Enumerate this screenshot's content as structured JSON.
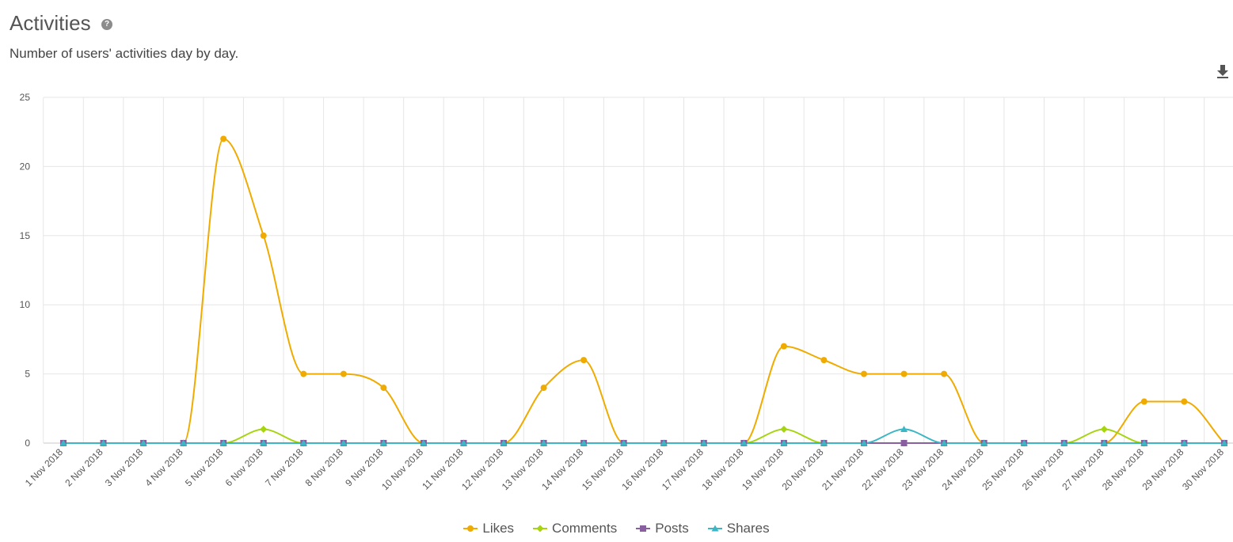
{
  "header": {
    "title": "Activities",
    "help_glyph": "?",
    "subtitle": "Number of users' activities day by day."
  },
  "chart_data": {
    "type": "line",
    "categories": [
      "1 Nov 2018",
      "2 Nov 2018",
      "3 Nov 2018",
      "4 Nov 2018",
      "5 Nov 2018",
      "6 Nov 2018",
      "7 Nov 2018",
      "8 Nov 2018",
      "9 Nov 2018",
      "10 Nov 2018",
      "11 Nov 2018",
      "12 Nov 2018",
      "13 Nov 2018",
      "14 Nov 2018",
      "15 Nov 2018",
      "16 Nov 2018",
      "17 Nov 2018",
      "18 Nov 2018",
      "19 Nov 2018",
      "20 Nov 2018",
      "21 Nov 2018",
      "22 Nov 2018",
      "23 Nov 2018",
      "24 Nov 2018",
      "25 Nov 2018",
      "26 Nov 2018",
      "27 Nov 2018",
      "28 Nov 2018",
      "29 Nov 2018",
      "30 Nov 2018"
    ],
    "ylim": [
      0,
      25
    ],
    "yticks": [
      0,
      5,
      10,
      15,
      20,
      25
    ],
    "grid": true,
    "legend_position": "bottom-center",
    "series": [
      {
        "name": "Likes",
        "color": "#f0ab00",
        "marker": "circle",
        "values": [
          0,
          0,
          0,
          0,
          22,
          15,
          5,
          5,
          4,
          0,
          0,
          0,
          4,
          6,
          0,
          0,
          0,
          0,
          7,
          6,
          5,
          5,
          5,
          0,
          0,
          0,
          0,
          3,
          3,
          0
        ]
      },
      {
        "name": "Comments",
        "color": "#a6d40f",
        "marker": "diamond",
        "values": [
          0,
          0,
          0,
          0,
          0,
          1,
          0,
          0,
          0,
          0,
          0,
          0,
          0,
          0,
          0,
          0,
          0,
          0,
          1,
          0,
          0,
          0,
          0,
          0,
          0,
          0,
          1,
          0,
          0,
          0
        ]
      },
      {
        "name": "Posts",
        "color": "#8a5fa0",
        "marker": "square",
        "values": [
          0,
          0,
          0,
          0,
          0,
          0,
          0,
          0,
          0,
          0,
          0,
          0,
          0,
          0,
          0,
          0,
          0,
          0,
          0,
          0,
          0,
          0,
          0,
          0,
          0,
          0,
          0,
          0,
          0,
          0
        ]
      },
      {
        "name": "Shares",
        "color": "#3cb6c4",
        "marker": "triangle",
        "values": [
          0,
          0,
          0,
          0,
          0,
          0,
          0,
          0,
          0,
          0,
          0,
          0,
          0,
          0,
          0,
          0,
          0,
          0,
          0,
          0,
          0,
          1,
          0,
          0,
          0,
          0,
          0,
          0,
          0,
          0
        ]
      }
    ]
  }
}
